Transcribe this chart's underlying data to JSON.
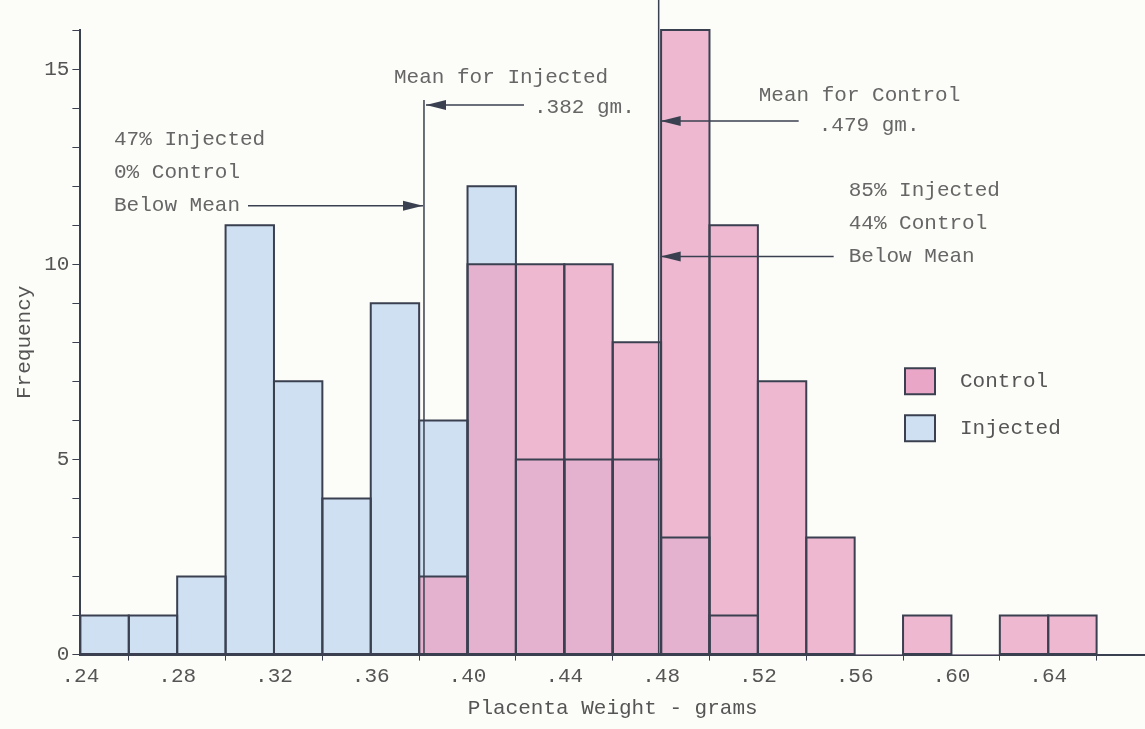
{
  "chart_data": {
    "type": "histogram",
    "xlabel": "Placenta Weight - grams",
    "ylabel": "Frequency",
    "bins": [
      0.24,
      0.26,
      0.28,
      0.3,
      0.32,
      0.34,
      0.36,
      0.38,
      0.4,
      0.42,
      0.44,
      0.46,
      0.48,
      0.5,
      0.52,
      0.54,
      0.56,
      0.58,
      0.6,
      0.62,
      0.64,
      0.66
    ],
    "series": [
      {
        "name": "Control",
        "color": "#e9a6c6",
        "values": [
          0,
          0,
          0,
          0,
          0,
          0,
          0,
          2,
          10,
          10,
          10,
          8,
          16,
          11,
          7,
          3,
          0,
          1,
          0,
          1,
          1
        ]
      },
      {
        "name": "Injected",
        "color": "#cfe0f2",
        "values": [
          1,
          1,
          2,
          11,
          7,
          4,
          9,
          6,
          12,
          5,
          5,
          5,
          3,
          1,
          0,
          0,
          0,
          0,
          0,
          0,
          0
        ]
      }
    ],
    "xlim": [
      0.24,
      0.68
    ],
    "xticks": [
      {
        "value": 0.24,
        "label": ".24"
      },
      {
        "value": 0.28,
        "label": ".28"
      },
      {
        "value": 0.32,
        "label": ".32"
      },
      {
        "value": 0.36,
        "label": ".36"
      },
      {
        "value": 0.4,
        "label": ".40"
      },
      {
        "value": 0.44,
        "label": ".44"
      },
      {
        "value": 0.48,
        "label": ".48"
      },
      {
        "value": 0.52,
        "label": ".52"
      },
      {
        "value": 0.56,
        "label": ".56"
      },
      {
        "value": 0.6,
        "label": ".60"
      },
      {
        "value": 0.64,
        "label": ".64"
      }
    ],
    "ylim": [
      0,
      16
    ],
    "yticks": [
      0,
      {
        "value": 1,
        "label": null
      },
      {
        "value": 2,
        "label": null
      },
      {
        "value": 3,
        "label": null
      },
      {
        "value": 4,
        "label": null
      },
      5,
      {
        "value": 6,
        "label": null
      },
      {
        "value": 7,
        "label": null
      },
      {
        "value": 8,
        "label": null
      },
      {
        "value": 9,
        "label": null
      },
      10,
      {
        "value": 11,
        "label": null
      },
      {
        "value": 12,
        "label": null
      },
      {
        "value": 13,
        "label": null
      },
      {
        "value": 14,
        "label": null
      },
      15,
      {
        "value": 16,
        "label": null
      }
    ],
    "ref_lines": [
      {
        "axis": "x",
        "value": 0.382,
        "label": "Mean for Injected .382 gm."
      },
      {
        "axis": "x",
        "value": 0.479,
        "label": "Mean for Control .479 gm."
      }
    ],
    "annotations": [
      {
        "text": "47% Injected 0% Control Below Mean",
        "x": 0.382,
        "y": 11.5
      },
      {
        "text": "85% Injected 44% Control Below Mean",
        "x": 0.479,
        "y": 10.2
      }
    ],
    "legend": "right",
    "grid": false
  }
}
